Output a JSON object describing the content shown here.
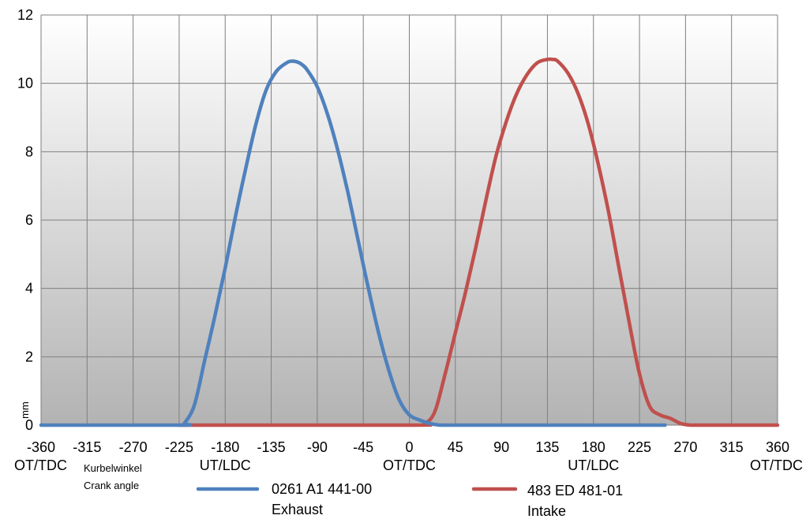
{
  "chart_data": {
    "type": "line",
    "title": "",
    "xlabel": "Kurbelwinkel",
    "xlabel_sub": "Crank angle",
    "ylabel": "mm",
    "xlim": [
      -360,
      360
    ],
    "ylim": [
      0,
      12
    ],
    "x_ticks": [
      -360,
      -315,
      -270,
      -225,
      -180,
      -135,
      -90,
      -45,
      0,
      45,
      90,
      135,
      180,
      225,
      270,
      315,
      360
    ],
    "y_ticks": [
      0,
      2,
      4,
      6,
      8,
      10,
      12
    ],
    "x_annotations": [
      {
        "x": -360,
        "text": "OT/TDC"
      },
      {
        "x": -180,
        "text": "UT/LDC"
      },
      {
        "x": 0,
        "text": "OT/TDC"
      },
      {
        "x": 180,
        "text": "UT/LDC"
      },
      {
        "x": 360,
        "text": "OT/TDC"
      }
    ],
    "grid": true,
    "legend_position": "bottom",
    "series": [
      {
        "name": "0261 A1 441-00",
        "name_sub": "Exhaust",
        "color": "#4F81BD",
        "x": [
          -360,
          -225,
          -220,
          -210,
          -200,
          -190,
          -180,
          -170,
          -160,
          -150,
          -140,
          -130,
          -120,
          -115,
          -110,
          -105,
          -100,
          -90,
          -80,
          -70,
          -60,
          -50,
          -40,
          -30,
          -20,
          -10,
          0,
          10,
          20,
          30,
          45,
          100,
          250
        ],
        "y": [
          0,
          0,
          0.05,
          0.6,
          1.9,
          3.2,
          4.6,
          6.1,
          7.5,
          8.8,
          9.8,
          10.35,
          10.6,
          10.65,
          10.63,
          10.55,
          10.4,
          9.9,
          9.1,
          8.05,
          6.8,
          5.4,
          4.0,
          2.7,
          1.6,
          0.75,
          0.3,
          0.15,
          0.05,
          0,
          0,
          0,
          0
        ]
      },
      {
        "name": "483 ED 481-01",
        "name_sub": "Intake",
        "color": "#C0504D",
        "x": [
          -225,
          0,
          15,
          25,
          35,
          45,
          55,
          65,
          75,
          85,
          95,
          105,
          115,
          125,
          135,
          140,
          145,
          155,
          165,
          175,
          185,
          195,
          205,
          215,
          225,
          235,
          245,
          255,
          265,
          275,
          290,
          360
        ],
        "y": [
          0,
          0,
          0.05,
          0.4,
          1.5,
          2.7,
          3.9,
          5.2,
          6.6,
          7.9,
          8.9,
          9.7,
          10.25,
          10.6,
          10.7,
          10.7,
          10.65,
          10.3,
          9.7,
          8.8,
          7.6,
          6.2,
          4.6,
          3.0,
          1.5,
          0.55,
          0.3,
          0.2,
          0.05,
          0,
          0,
          0
        ]
      }
    ]
  }
}
